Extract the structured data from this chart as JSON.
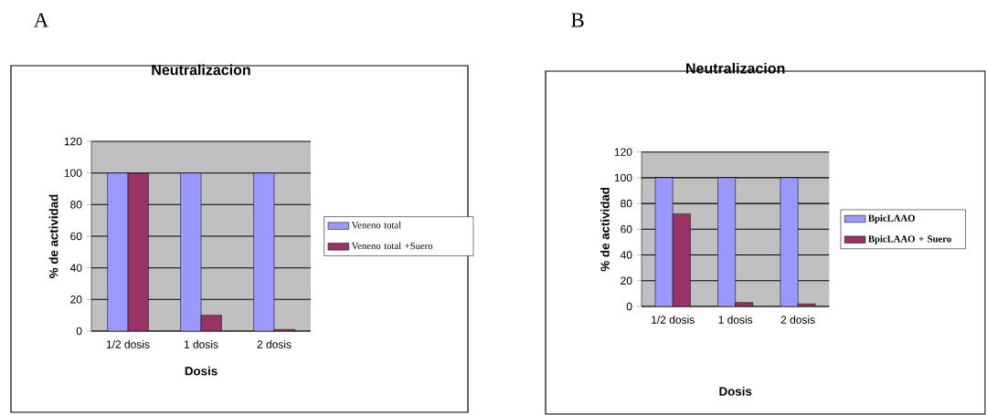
{
  "chart_data": [
    {
      "type": "bar",
      "title": "Neutralizacion",
      "xlabel": "Dosis",
      "ylabel": "% de actividad",
      "annotations": [
        "A"
      ],
      "categories": [
        "1/2 dosis",
        "1 dosis",
        "2 dosis"
      ],
      "series": [
        {
          "name": "Veneno total",
          "color": "#9999ff",
          "values": [
            100,
            100,
            100
          ]
        },
        {
          "name": "Veneno total +Suero",
          "color": "#993366",
          "values": [
            100,
            10,
            1
          ]
        }
      ],
      "ylim": [
        0,
        120
      ],
      "yticks": [
        0,
        20,
        40,
        60,
        80,
        100,
        120
      ],
      "grid": "y",
      "legend": "right"
    },
    {
      "type": "bar",
      "title": "Neutralizacion",
      "xlabel": "Dosis",
      "ylabel": "% de actividad",
      "annotations": [
        "B"
      ],
      "categories": [
        "1/2 dosis",
        "1 dosis",
        "2 dosis"
      ],
      "series": [
        {
          "name": "BpicLAAO",
          "color": "#9999ff",
          "values": [
            100,
            100,
            100
          ]
        },
        {
          "name": "BpicLAAO + Suero",
          "color": "#993366",
          "values": [
            72,
            3,
            2
          ]
        }
      ],
      "ylim": [
        0,
        120
      ],
      "yticks": [
        0,
        20,
        40,
        60,
        80,
        100,
        120
      ],
      "grid": "y",
      "legend": "right"
    }
  ]
}
